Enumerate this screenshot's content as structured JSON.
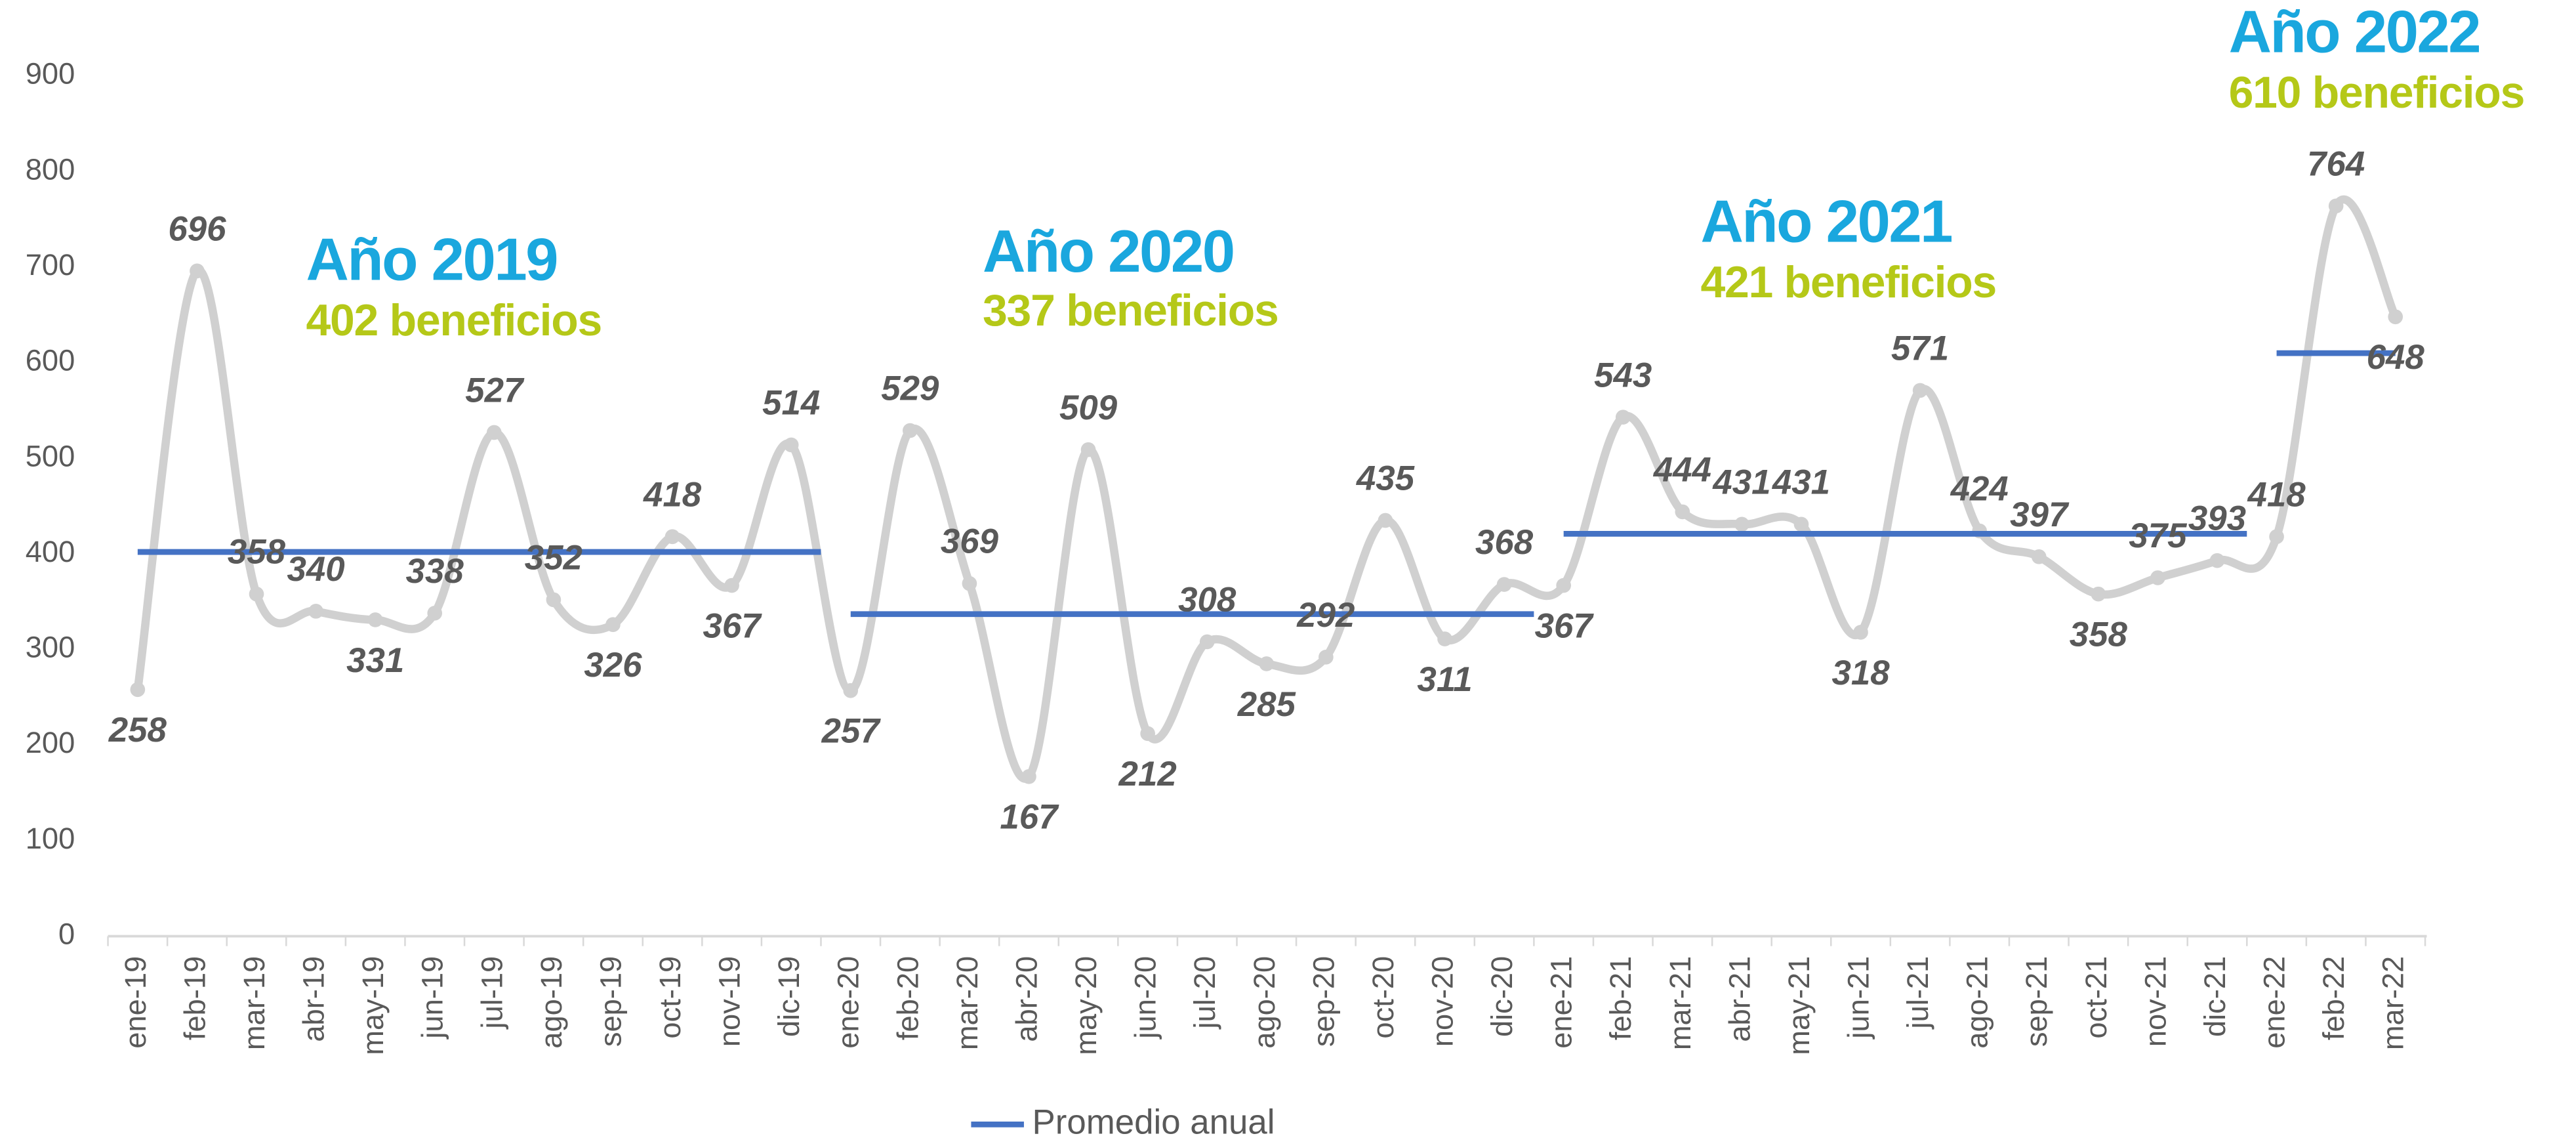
{
  "chart_data": {
    "type": "line",
    "categories": [
      "ene-19",
      "feb-19",
      "mar-19",
      "abr-19",
      "may-19",
      "jun-19",
      "jul-19",
      "ago-19",
      "sep-19",
      "oct-19",
      "nov-19",
      "dic-19",
      "ene-20",
      "feb-20",
      "mar-20",
      "abr-20",
      "may-20",
      "jun-20",
      "jul-20",
      "ago-20",
      "sep-20",
      "oct-20",
      "nov-20",
      "dic-20",
      "ene-21",
      "feb-21",
      "mar-21",
      "abr-21",
      "may-21",
      "jun-21",
      "jul-21",
      "ago-21",
      "sep-21",
      "oct-21",
      "nov-21",
      "dic-21",
      "ene-22",
      "feb-22",
      "mar-22"
    ],
    "series": [
      {
        "color": "#d0d0d0",
        "values": [
          258,
          696,
          358,
          340,
          331,
          338,
          527,
          352,
          326,
          418,
          367,
          514,
          257,
          529,
          369,
          167,
          509,
          212,
          308,
          285,
          292,
          435,
          311,
          368,
          367,
          543,
          444,
          431,
          431,
          318,
          571,
          424,
          397,
          358,
          375,
          393,
          418,
          764,
          648
        ]
      }
    ],
    "annual_average": {
      "name": "Promedio anual",
      "color": "#4472c4",
      "values": [
        402,
        337,
        421,
        610
      ]
    },
    "annotations": [
      {
        "title": "Año 2019",
        "subtitle": "402 beneficios"
      },
      {
        "title": "Año 2020",
        "subtitle": "337 beneficios"
      },
      {
        "title": "Año 2021",
        "subtitle": "421 beneficios"
      },
      {
        "title": "Año 2022",
        "subtitle": "610 beneficios"
      }
    ],
    "ylim": [
      0,
      900
    ],
    "yticks": [
      0,
      100,
      200,
      300,
      400,
      500,
      600,
      700,
      800,
      900
    ],
    "grid": false
  }
}
